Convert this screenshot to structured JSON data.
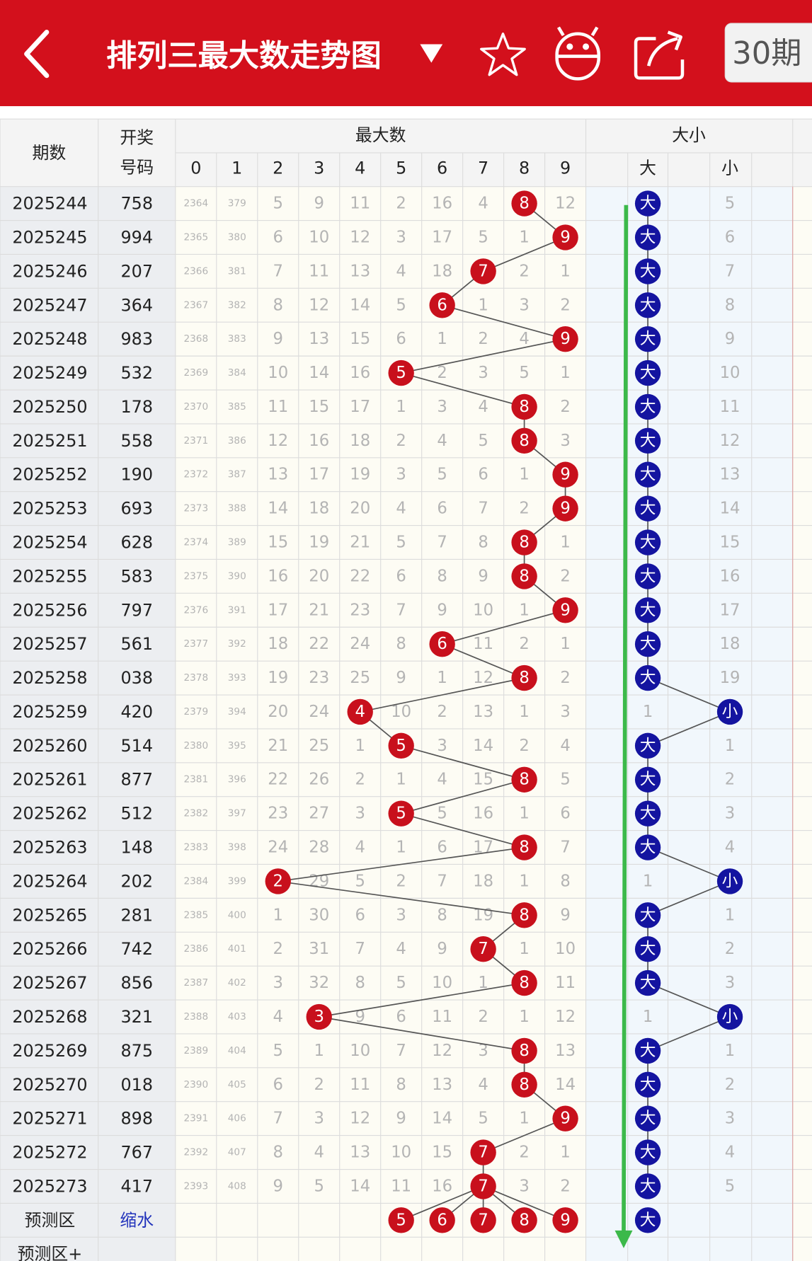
{
  "header": {
    "title": "排列三最大数走势图",
    "period_button": "30期"
  },
  "table": {
    "head": {
      "issue": "期数",
      "code": [
        "开奖",
        "号码"
      ],
      "group_max": "最大数",
      "digits": [
        0,
        1,
        2,
        3,
        4,
        5,
        6,
        7,
        8,
        9
      ],
      "group_size": "大小",
      "size_cols": [
        "大",
        "小"
      ]
    },
    "rows": [
      {
        "issue": "2025244",
        "code": "758",
        "cells": [
          2364,
          379,
          5,
          9,
          11,
          2,
          16,
          4,
          8,
          12
        ],
        "size": [
          "大",
          5
        ]
      },
      {
        "issue": "2025245",
        "code": "994",
        "cells": [
          2365,
          380,
          6,
          10,
          12,
          3,
          17,
          5,
          1,
          9
        ],
        "size": [
          "大",
          6
        ]
      },
      {
        "issue": "2025246",
        "code": "207",
        "cells": [
          2366,
          381,
          7,
          11,
          13,
          4,
          18,
          7,
          2,
          1
        ],
        "size": [
          "大",
          7
        ]
      },
      {
        "issue": "2025247",
        "code": "364",
        "cells": [
          2367,
          382,
          8,
          12,
          14,
          5,
          6,
          1,
          3,
          2
        ],
        "size": [
          "大",
          8
        ]
      },
      {
        "issue": "2025248",
        "code": "983",
        "cells": [
          2368,
          383,
          9,
          13,
          15,
          6,
          1,
          2,
          4,
          9
        ],
        "size": [
          "大",
          9
        ]
      },
      {
        "issue": "2025249",
        "code": "532",
        "cells": [
          2369,
          384,
          10,
          14,
          16,
          5,
          2,
          3,
          5,
          1
        ],
        "size": [
          "大",
          10
        ]
      },
      {
        "issue": "2025250",
        "code": "178",
        "cells": [
          2370,
          385,
          11,
          15,
          17,
          1,
          3,
          4,
          8,
          2
        ],
        "size": [
          "大",
          11
        ]
      },
      {
        "issue": "2025251",
        "code": "558",
        "cells": [
          2371,
          386,
          12,
          16,
          18,
          2,
          4,
          5,
          8,
          3
        ],
        "size": [
          "大",
          12
        ]
      },
      {
        "issue": "2025252",
        "code": "190",
        "cells": [
          2372,
          387,
          13,
          17,
          19,
          3,
          5,
          6,
          1,
          9
        ],
        "size": [
          "大",
          13
        ]
      },
      {
        "issue": "2025253",
        "code": "693",
        "cells": [
          2373,
          388,
          14,
          18,
          20,
          4,
          6,
          7,
          2,
          9
        ],
        "size": [
          "大",
          14
        ]
      },
      {
        "issue": "2025254",
        "code": "628",
        "cells": [
          2374,
          389,
          15,
          19,
          21,
          5,
          7,
          8,
          8,
          1
        ],
        "size": [
          "大",
          15
        ]
      },
      {
        "issue": "2025255",
        "code": "583",
        "cells": [
          2375,
          390,
          16,
          20,
          22,
          6,
          8,
          9,
          8,
          2
        ],
        "size": [
          "大",
          16
        ]
      },
      {
        "issue": "2025256",
        "code": "797",
        "cells": [
          2376,
          391,
          17,
          21,
          23,
          7,
          9,
          10,
          1,
          9
        ],
        "size": [
          "大",
          17
        ]
      },
      {
        "issue": "2025257",
        "code": "561",
        "cells": [
          2377,
          392,
          18,
          22,
          24,
          8,
          6,
          11,
          2,
          1
        ],
        "size": [
          "大",
          18
        ]
      },
      {
        "issue": "2025258",
        "code": "038",
        "cells": [
          2378,
          393,
          19,
          23,
          25,
          9,
          1,
          12,
          8,
          2
        ],
        "size": [
          "大",
          19
        ]
      },
      {
        "issue": "2025259",
        "code": "420",
        "cells": [
          2379,
          394,
          20,
          24,
          4,
          10,
          2,
          13,
          1,
          3
        ],
        "size": [
          1,
          "小"
        ]
      },
      {
        "issue": "2025260",
        "code": "514",
        "cells": [
          2380,
          395,
          21,
          25,
          1,
          5,
          3,
          14,
          2,
          4
        ],
        "size": [
          "大",
          1
        ]
      },
      {
        "issue": "2025261",
        "code": "877",
        "cells": [
          2381,
          396,
          22,
          26,
          2,
          1,
          4,
          15,
          8,
          5
        ],
        "size": [
          "大",
          2
        ]
      },
      {
        "issue": "2025262",
        "code": "512",
        "cells": [
          2382,
          397,
          23,
          27,
          3,
          5,
          5,
          16,
          1,
          6
        ],
        "size": [
          "大",
          3
        ]
      },
      {
        "issue": "2025263",
        "code": "148",
        "cells": [
          2383,
          398,
          24,
          28,
          4,
          1,
          6,
          17,
          8,
          7
        ],
        "size": [
          "大",
          4
        ]
      },
      {
        "issue": "2025264",
        "code": "202",
        "cells": [
          2384,
          399,
          2,
          29,
          5,
          2,
          7,
          18,
          1,
          8
        ],
        "size": [
          1,
          "小"
        ]
      },
      {
        "issue": "2025265",
        "code": "281",
        "cells": [
          2385,
          400,
          1,
          30,
          6,
          3,
          8,
          19,
          8,
          9
        ],
        "size": [
          "大",
          1
        ]
      },
      {
        "issue": "2025266",
        "code": "742",
        "cells": [
          2386,
          401,
          2,
          31,
          7,
          4,
          9,
          7,
          1,
          10
        ],
        "size": [
          "大",
          2
        ]
      },
      {
        "issue": "2025267",
        "code": "856",
        "cells": [
          2387,
          402,
          3,
          32,
          8,
          5,
          10,
          1,
          8,
          11
        ],
        "size": [
          "大",
          3
        ]
      },
      {
        "issue": "2025268",
        "code": "321",
        "cells": [
          2388,
          403,
          4,
          3,
          9,
          6,
          11,
          2,
          1,
          12
        ],
        "size": [
          1,
          "小"
        ]
      },
      {
        "issue": "2025269",
        "code": "875",
        "cells": [
          2389,
          404,
          5,
          1,
          10,
          7,
          12,
          3,
          8,
          13
        ],
        "size": [
          "大",
          1
        ]
      },
      {
        "issue": "2025270",
        "code": "018",
        "cells": [
          2390,
          405,
          6,
          2,
          11,
          8,
          13,
          4,
          8,
          14
        ],
        "size": [
          "大",
          2
        ]
      },
      {
        "issue": "2025271",
        "code": "898",
        "cells": [
          2391,
          406,
          7,
          3,
          12,
          9,
          14,
          5,
          1,
          9
        ],
        "size": [
          "大",
          3
        ]
      },
      {
        "issue": "2025272",
        "code": "767",
        "cells": [
          2392,
          407,
          8,
          4,
          13,
          10,
          15,
          7,
          2,
          1
        ],
        "size": [
          "大",
          4
        ]
      },
      {
        "issue": "2025273",
        "code": "417",
        "cells": [
          2393,
          408,
          9,
          5,
          14,
          11,
          16,
          7,
          3,
          2
        ],
        "size": [
          "大",
          5
        ]
      }
    ],
    "forecast": {
      "label": "预测区",
      "mode": "缩水",
      "balls": [
        5,
        6,
        7,
        8,
        9
      ],
      "size": "大"
    },
    "forecast_plus": {
      "label": "预测区+"
    }
  }
}
